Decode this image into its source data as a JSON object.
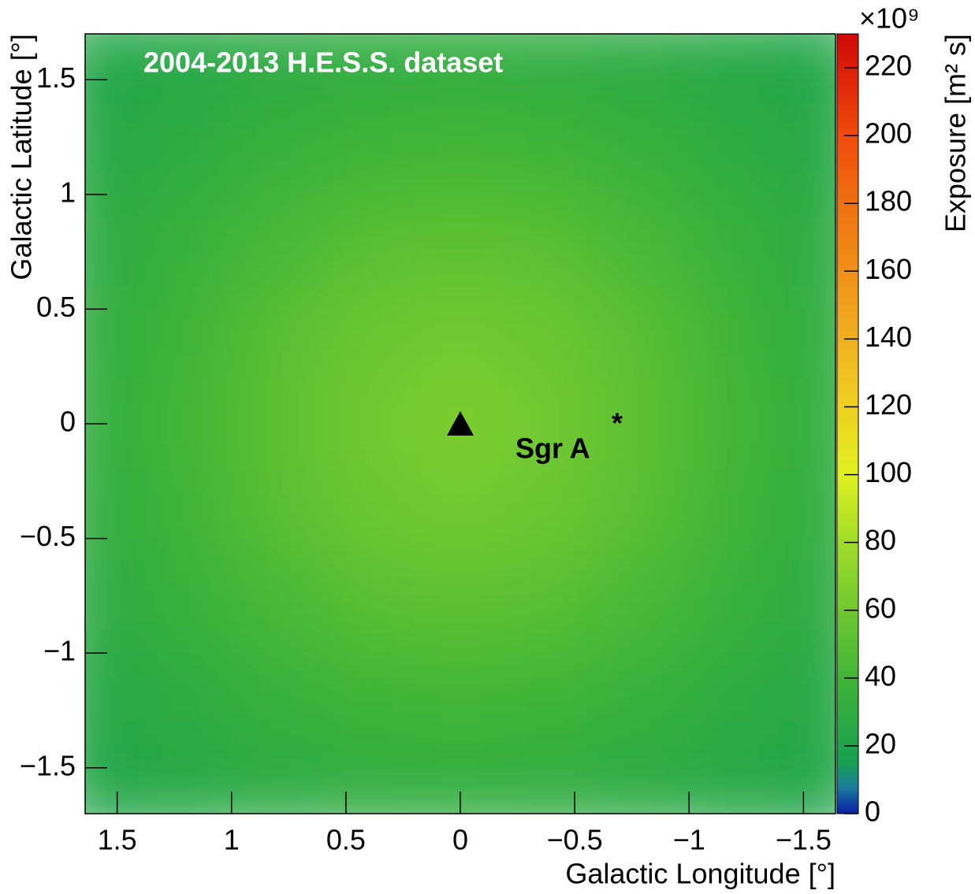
{
  "chart_data": {
    "type": "heatmap",
    "title": "2004-2013 H.E.S.S. dataset",
    "xlabel": "Galactic Longitude [°]",
    "ylabel": "Galactic Latitude [°]",
    "zlabel": "Exposure [m² s]",
    "z_multiplier": "×10⁹",
    "xlim": [
      1.64,
      -1.64
    ],
    "ylim": [
      -1.7,
      1.7
    ],
    "xticks": [
      1.5,
      1,
      0.5,
      0,
      {
        "value": -0.5,
        "label": "−0.5"
      },
      {
        "value": -1,
        "label": "−1"
      },
      {
        "value": -1.5,
        "label": "−1.5"
      }
    ],
    "yticks": [
      {
        "value": -1.5,
        "label": "−1.5"
      },
      {
        "value": -1,
        "label": "−1"
      },
      {
        "value": -0.5,
        "label": "−0.5"
      },
      0,
      0.5,
      1,
      1.5
    ],
    "zlim": [
      0,
      230
    ],
    "zticks": [
      0,
      20,
      40,
      60,
      80,
      100,
      120,
      140,
      160,
      180,
      200,
      220
    ],
    "colorscale": [
      {
        "value": 0,
        "color": "#0a1ea8"
      },
      {
        "value": 8,
        "color": "#1a7e9a"
      },
      {
        "value": 15,
        "color": "#18a050"
      },
      {
        "value": 40,
        "color": "#40b438"
      },
      {
        "value": 60,
        "color": "#70c830"
      },
      {
        "value": 80,
        "color": "#a0dc28"
      },
      {
        "value": 100,
        "color": "#e0f020"
      },
      {
        "value": 120,
        "color": "#f0d020"
      },
      {
        "value": 140,
        "color": "#f0b020"
      },
      {
        "value": 160,
        "color": "#f09018"
      },
      {
        "value": 180,
        "color": "#f07010"
      },
      {
        "value": 200,
        "color": "#f04a0a"
      },
      {
        "value": 230,
        "color": "#d00808"
      }
    ],
    "x": [
      1.6,
      1.2,
      0.8,
      0.4,
      0,
      -0.4,
      -0.8,
      -1.2,
      -1.6
    ],
    "y": [
      1.6,
      1.2,
      0.8,
      0.4,
      0,
      -0.4,
      -0.8,
      -1.2,
      -1.6
    ],
    "z": [
      [
        22,
        24,
        28,
        30,
        31,
        30,
        28,
        24,
        22
      ],
      [
        24,
        29,
        35,
        39,
        41,
        39,
        35,
        29,
        24
      ],
      [
        28,
        35,
        43,
        50,
        52,
        50,
        43,
        35,
        28
      ],
      [
        30,
        39,
        50,
        58,
        61,
        58,
        50,
        39,
        30
      ],
      [
        31,
        41,
        52,
        61,
        65,
        61,
        52,
        41,
        31
      ],
      [
        30,
        39,
        50,
        58,
        61,
        58,
        50,
        39,
        30
      ],
      [
        28,
        35,
        43,
        50,
        52,
        50,
        43,
        35,
        28
      ],
      [
        24,
        29,
        35,
        39,
        41,
        39,
        35,
        29,
        24
      ],
      [
        22,
        24,
        28,
        30,
        31,
        30,
        28,
        24,
        22
      ]
    ],
    "marker": {
      "x": 0,
      "y": 0,
      "label": "Sgr A",
      "label_sup": "*"
    }
  }
}
